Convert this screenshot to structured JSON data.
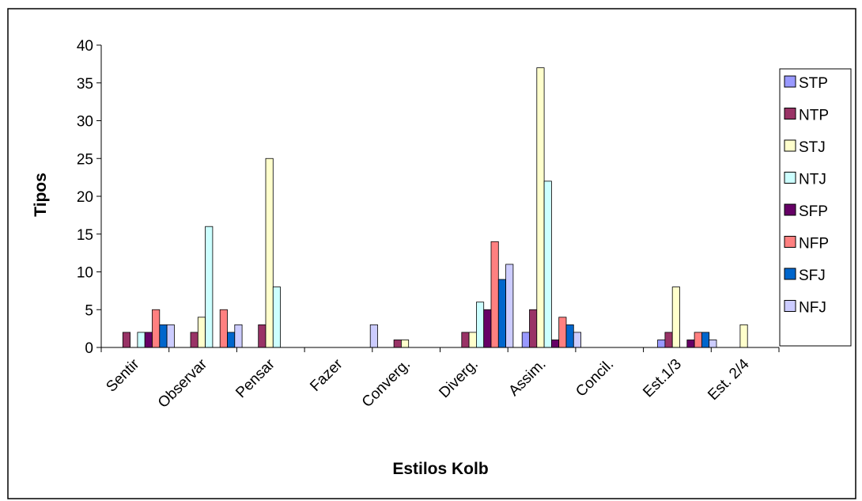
{
  "chart_data": {
    "type": "bar",
    "title": "",
    "xlabel": "Estilos Kolb",
    "ylabel": "Tipos",
    "ylim": [
      0,
      40
    ],
    "yticks": [
      0,
      5,
      10,
      15,
      20,
      25,
      30,
      35,
      40
    ],
    "grid": false,
    "legend_position": "right",
    "categories": [
      "Sentir",
      "Observar",
      "Pensar",
      "Fazer",
      "Converg.",
      "Diverg.",
      "Assim.",
      "Concil.",
      "Est.1/3",
      "Est. 2/4"
    ],
    "series": [
      {
        "name": "STP",
        "color": "#9999ff",
        "values": [
          0,
          0,
          0,
          0,
          0,
          0,
          2,
          0,
          1,
          0
        ]
      },
      {
        "name": "NTP",
        "color": "#993366",
        "values": [
          2,
          2,
          3,
          0,
          1,
          2,
          5,
          0,
          2,
          0
        ]
      },
      {
        "name": "STJ",
        "color": "#ffffcc",
        "values": [
          0,
          4,
          25,
          0,
          1,
          2,
          37,
          0,
          8,
          3
        ]
      },
      {
        "name": "NTJ",
        "color": "#ccffff",
        "values": [
          2,
          16,
          8,
          0,
          0,
          6,
          22,
          0,
          0,
          0
        ]
      },
      {
        "name": "SFP",
        "color": "#660066",
        "values": [
          2,
          0,
          0,
          0,
          0,
          5,
          1,
          0,
          1,
          0
        ]
      },
      {
        "name": "NFP",
        "color": "#ff8080",
        "values": [
          5,
          5,
          0,
          0,
          0,
          14,
          4,
          0,
          2,
          0
        ]
      },
      {
        "name": "SFJ",
        "color": "#0066cc",
        "values": [
          3,
          2,
          0,
          0,
          0,
          9,
          3,
          0,
          2,
          0
        ]
      },
      {
        "name": "NFJ",
        "color": "#ccccff",
        "values": [
          3,
          3,
          0,
          3,
          0,
          11,
          2,
          0,
          1,
          0
        ]
      }
    ]
  }
}
